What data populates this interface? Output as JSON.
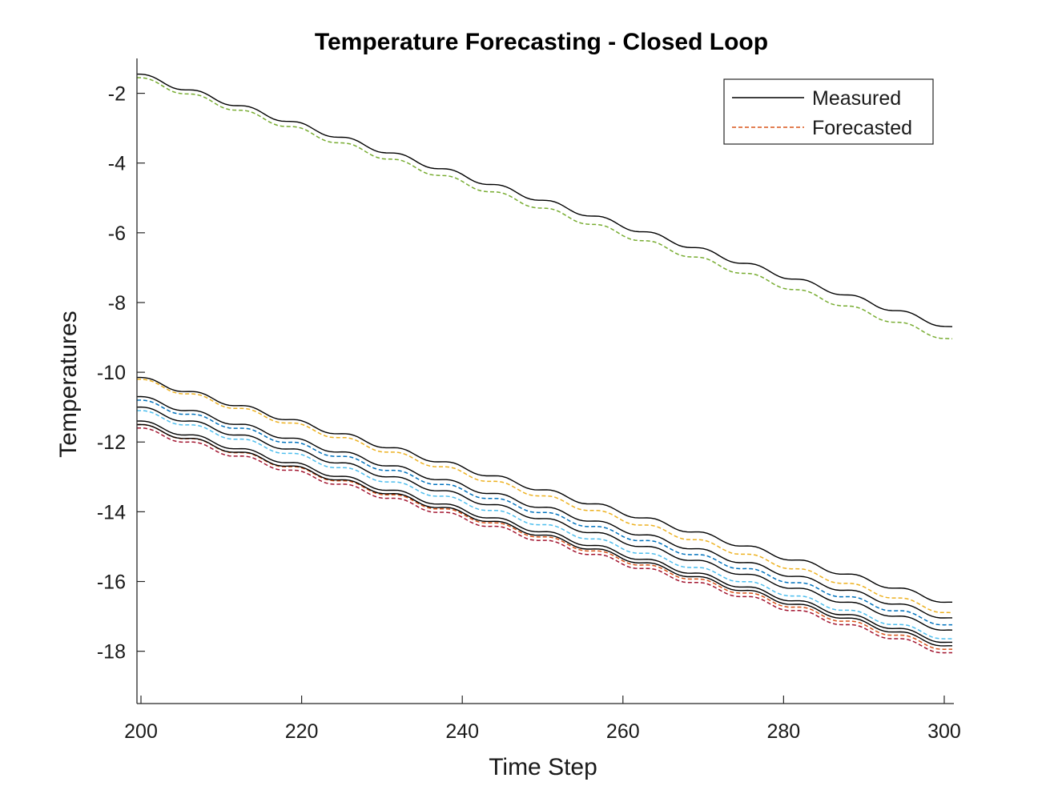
{
  "chart_data": {
    "type": "line",
    "title": "Temperature Forecasting - Closed Loop",
    "xlabel": "Time Step",
    "ylabel": "Temperatures",
    "xlim": [
      199.5,
      301.2
    ],
    "ylim": [
      -19.5,
      -1.0
    ],
    "xticks": [
      200,
      220,
      240,
      260,
      280,
      300
    ],
    "yticks": [
      -2,
      -4,
      -6,
      -8,
      -10,
      -12,
      -14,
      -16,
      -18
    ],
    "legend": {
      "position": "top-right",
      "entries": [
        {
          "label": "Measured",
          "style": "solid",
          "color": "#000000"
        },
        {
          "label": "Forecasted",
          "style": "dashed",
          "color": "#D95319"
        }
      ]
    },
    "x_start": 199.5,
    "x_end": 301.2,
    "x_step": 0.5,
    "oscillation": {
      "amplitude": 0.07,
      "period": 6.3
    },
    "measured": [
      {
        "start": -1.45,
        "end": -8.75,
        "color": "#000000"
      },
      {
        "start": -10.15,
        "end": -16.65,
        "color": "#000000"
      },
      {
        "start": -10.7,
        "end": -17.1,
        "color": "#000000"
      },
      {
        "start": -11.0,
        "end": -17.45,
        "color": "#000000"
      },
      {
        "start": -11.4,
        "end": -17.8,
        "color": "#000000"
      },
      {
        "start": -11.5,
        "end": -17.9,
        "color": "#000000"
      }
    ],
    "forecasted": [
      {
        "start": -1.55,
        "end": -9.1,
        "color": "#77AC30"
      },
      {
        "start": -10.2,
        "end": -16.95,
        "color": "#EDB120"
      },
      {
        "start": -10.8,
        "end": -17.3,
        "color": "#0072BD"
      },
      {
        "start": -11.1,
        "end": -17.7,
        "color": "#4DBEEE"
      },
      {
        "start": -11.5,
        "end": -18.0,
        "color": "#D95319"
      },
      {
        "start": -11.6,
        "end": -18.1,
        "color": "#A2142F"
      }
    ]
  }
}
